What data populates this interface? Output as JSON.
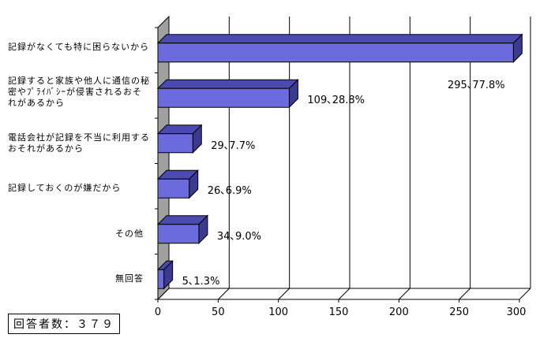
{
  "chart_data": {
    "type": "bar",
    "orientation": "horizontal",
    "style": "3d",
    "bar_color": "#6b6bdd",
    "categories": [
      "記録がなくても特に困らないから",
      "記録すると家族や他人に通信の秘密やﾌﾟﾗｲﾊﾞｼｰが侵害されるおそれがあるから",
      "電話会社が記録を不当に利用するおそれがあるから",
      "記録しておくのが嫌だから",
      "その他",
      "無回答"
    ],
    "values": [
      295,
      109,
      29,
      26,
      34,
      5
    ],
    "data_labels": [
      "295､77.8%",
      "109､28.8%",
      "29､7.7%",
      "26､6.9%",
      "34､9.0%",
      "5､1.3%"
    ],
    "xlim": [
      0,
      300
    ],
    "xticks": [
      "0",
      "50",
      "100",
      "150",
      "200",
      "250",
      "300"
    ],
    "grid": true
  },
  "note": "回答者数：３７９"
}
